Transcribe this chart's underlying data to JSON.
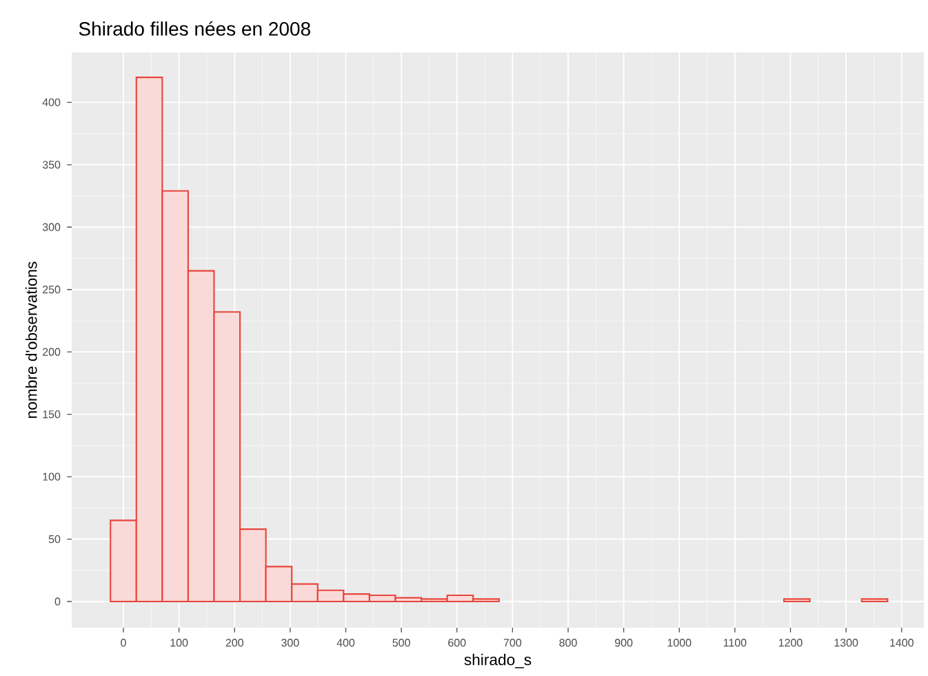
{
  "chart_data": {
    "type": "histogram",
    "title": "Shirado filles nées en 2008",
    "xlabel": "shirado_s",
    "ylabel": "nombre d'observations",
    "bins": [
      -23.3,
      23.3,
      69.9,
      116.5,
      163.1,
      209.7,
      256.3,
      302.9,
      349.5,
      396.1,
      442.7,
      489.3,
      535.9,
      582.5,
      629.1,
      675.7,
      722.3,
      768.9,
      815.5,
      862.1,
      908.7,
      955.3,
      1001.9,
      1048.5,
      1095.1,
      1141.7,
      1188.3,
      1234.9,
      1281.5,
      1328.1,
      1374.7
    ],
    "values": [
      65,
      420,
      329,
      265,
      232,
      58,
      28,
      14,
      9,
      6,
      5,
      3,
      2,
      5,
      2,
      0,
      0,
      0,
      0,
      0,
      0,
      0,
      0,
      0,
      0,
      0,
      2,
      0,
      0,
      2
    ],
    "color": "#e8453c",
    "xlim": [
      -93,
      1440
    ],
    "ylim": [
      -21,
      440
    ],
    "xticks": [
      0,
      100,
      200,
      300,
      400,
      500,
      600,
      700,
      800,
      900,
      1000,
      1100,
      1200,
      1300,
      1400
    ],
    "yticks": [
      0,
      50,
      100,
      150,
      200,
      250,
      300,
      350,
      400
    ],
    "grid": true
  }
}
